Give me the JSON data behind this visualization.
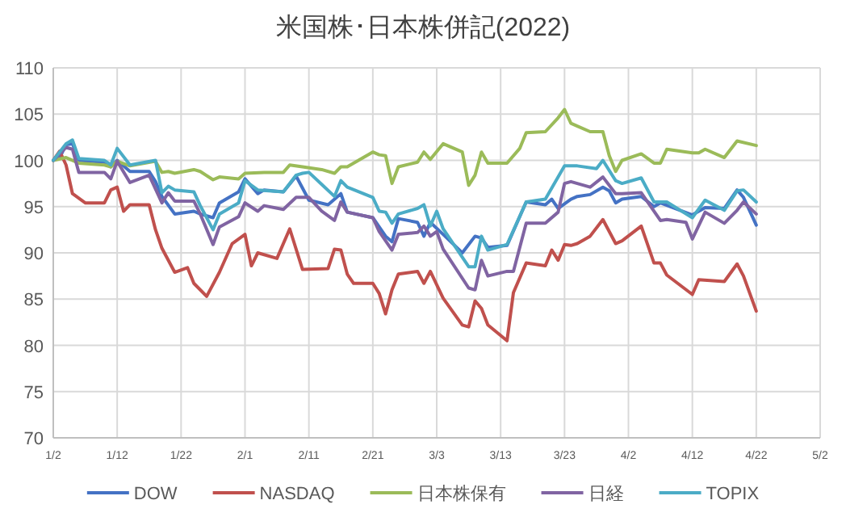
{
  "chart_data": {
    "type": "line",
    "title": "米国株･日本株併記(2022)",
    "grid": true,
    "legend": "bottom",
    "xlim": [
      "--01-02",
      "--05-02"
    ],
    "xticks": [
      {
        "value": "--01-02",
        "label": "1/2"
      },
      {
        "value": "--01-12",
        "label": "1/12"
      },
      {
        "value": "--01-22",
        "label": "1/22"
      },
      {
        "value": "--02-01",
        "label": "2/1"
      },
      {
        "value": "--02-11",
        "label": "2/11"
      },
      {
        "value": "--02-21",
        "label": "2/21"
      },
      {
        "value": "--03-03",
        "label": "3/3"
      },
      {
        "value": "--03-13",
        "label": "3/13"
      },
      {
        "value": "--03-23",
        "label": "3/23"
      },
      {
        "value": "--04-02",
        "label": "4/2"
      },
      {
        "value": "--04-12",
        "label": "4/12"
      },
      {
        "value": "--04-22",
        "label": "4/22"
      },
      {
        "value": "--05-02",
        "label": "5/2"
      }
    ],
    "ylim": [
      70,
      110
    ],
    "yticks": [
      70,
      75,
      80,
      85,
      90,
      95,
      100,
      105,
      110
    ],
    "series": [
      {
        "name": "DOW",
        "color": "#4472c4",
        "x": [
          "--01-02",
          "--01-03",
          "--01-04",
          "--01-05",
          "--01-06",
          "--01-10",
          "--01-11",
          "--01-12",
          "--01-14",
          "--01-17",
          "--01-18",
          "--01-19",
          "--01-21",
          "--01-24",
          "--01-25",
          "--01-27",
          "--01-28",
          "--01-31",
          "--02-01",
          "--02-03",
          "--02-04",
          "--02-07",
          "--02-09",
          "--02-11",
          "--02-14",
          "--02-16",
          "--02-17",
          "--02-21",
          "--02-23",
          "--02-24",
          "--02-25",
          "--02-28",
          "--03-01",
          "--03-02",
          "--03-04",
          "--03-07",
          "--03-09",
          "--03-10",
          "--03-11",
          "--03-14",
          "--03-17",
          "--03-20",
          "--03-21",
          "--03-22",
          "--03-24",
          "--03-25",
          "--03-27",
          "--03-29",
          "--03-30",
          "--03-31",
          "--04-01",
          "--04-04",
          "--04-06",
          "--04-07",
          "--04-12",
          "--04-14",
          "--04-17",
          "--04-19",
          "--04-20",
          "--04-22"
        ],
        "values": [
          100,
          100.3,
          101.7,
          101.8,
          100,
          99.8,
          99.3,
          100,
          98.8,
          98.8,
          97.7,
          96.1,
          94.2,
          94.5,
          94.2,
          93.8,
          95.4,
          96.6,
          98,
          96.4,
          96.8,
          96.6,
          98.3,
          95.7,
          95.2,
          96.4,
          94.4,
          93.8,
          91.8,
          91.2,
          93.7,
          93.3,
          91.8,
          93.3,
          92,
          90,
          91.8,
          91.6,
          90.6,
          90.8,
          95.5,
          95.2,
          95.8,
          94.8,
          95.8,
          96.1,
          96.3,
          97.1,
          96.7,
          95.4,
          95.8,
          96.1,
          95,
          95.4,
          94.1,
          94.9,
          94.8,
          96.8,
          96,
          93
        ]
      },
      {
        "name": "NASDAQ",
        "color": "#c0504d",
        "x": [
          "--01-02",
          "--01-03",
          "--01-04",
          "--01-05",
          "--01-07",
          "--01-10",
          "--01-11",
          "--01-12",
          "--01-13",
          "--01-14",
          "--01-17",
          "--01-18",
          "--01-19",
          "--01-21",
          "--01-23",
          "--01-24",
          "--01-26",
          "--01-28",
          "--01-30",
          "--02-01",
          "--02-02",
          "--02-03",
          "--02-06",
          "--02-08",
          "--02-10",
          "--02-14",
          "--02-15",
          "--02-16",
          "--02-17",
          "--02-18",
          "--02-21",
          "--02-22",
          "--02-23",
          "--02-24",
          "--02-25",
          "--02-28",
          "--03-01",
          "--03-02",
          "--03-04",
          "--03-07",
          "--03-08",
          "--03-09",
          "--03-10",
          "--03-11",
          "--03-14",
          "--03-15",
          "--03-17",
          "--03-20",
          "--03-21",
          "--03-22",
          "--03-23",
          "--03-24",
          "--03-25",
          "--03-27",
          "--03-29",
          "--03-31",
          "--04-01",
          "--04-04",
          "--04-06",
          "--04-07",
          "--04-08",
          "--04-12",
          "--04-13",
          "--04-17",
          "--04-19",
          "--04-20",
          "--04-22"
        ],
        "values": [
          100,
          101,
          99.5,
          96.4,
          95.4,
          95.4,
          96.8,
          97.1,
          94.5,
          95.2,
          95.2,
          92.5,
          90.5,
          87.9,
          88.4,
          86.7,
          85.3,
          87.9,
          91,
          92,
          88.6,
          90,
          89.4,
          92.6,
          88.2,
          88.3,
          90.4,
          90.3,
          87.7,
          86.7,
          86.7,
          85.6,
          83.4,
          86,
          87.7,
          88,
          86.7,
          88,
          85.1,
          82.2,
          82,
          84.8,
          84,
          82.2,
          80.5,
          85.7,
          88.9,
          88.6,
          90.3,
          89.2,
          90.9,
          90.8,
          91,
          91.8,
          93.6,
          91,
          91.3,
          92.9,
          88.9,
          88.9,
          87.6,
          85.5,
          87.1,
          86.9,
          88.8,
          87.5,
          83.7
        ]
      },
      {
        "name": "日本株保有",
        "color": "#9bbb59",
        "x": [
          "--01-02",
          "--01-04",
          "--01-06",
          "--01-10",
          "--01-11",
          "--01-12",
          "--01-14",
          "--01-18",
          "--01-19",
          "--01-20",
          "--01-21",
          "--01-24",
          "--01-25",
          "--01-27",
          "--01-28",
          "--01-31",
          "--02-01",
          "--02-04",
          "--02-07",
          "--02-08",
          "--02-10",
          "--02-13",
          "--02-15",
          "--02-16",
          "--02-17",
          "--02-21",
          "--02-22",
          "--02-23",
          "--02-24",
          "--02-25",
          "--02-28",
          "--03-01",
          "--03-02",
          "--03-04",
          "--03-07",
          "--03-08",
          "--03-09",
          "--03-10",
          "--03-11",
          "--03-14",
          "--03-16",
          "--03-17",
          "--03-20",
          "--03-22",
          "--03-23",
          "--03-24",
          "--03-25",
          "--03-27",
          "--03-29",
          "--03-30",
          "--03-31",
          "--04-01",
          "--04-04",
          "--04-06",
          "--04-07",
          "--04-08",
          "--04-12",
          "--04-13",
          "--04-14",
          "--04-17",
          "--04-19",
          "--04-22"
        ],
        "values": [
          100,
          100.3,
          99.7,
          99.5,
          99.3,
          99.9,
          99.4,
          99.9,
          98.7,
          98.8,
          98.6,
          99,
          98.8,
          97.9,
          98.2,
          98,
          98.6,
          98.7,
          98.7,
          99.5,
          99.3,
          99,
          98.6,
          99.3,
          99.3,
          100.9,
          100.6,
          100.5,
          97.5,
          99.3,
          99.8,
          100.9,
          100.1,
          101.8,
          100.9,
          97.3,
          98.4,
          100.9,
          99.7,
          99.7,
          101.3,
          103,
          103.1,
          104.6,
          105.5,
          104,
          103.7,
          103.1,
          103.1,
          100.5,
          98.8,
          100,
          100.7,
          99.7,
          99.7,
          101.2,
          100.8,
          100.8,
          101.2,
          100.3,
          102.1,
          101.6
        ]
      },
      {
        "name": "日経",
        "color": "#8064a2",
        "x": [
          "--01-02",
          "--01-04",
          "--01-05",
          "--01-06",
          "--01-10",
          "--01-11",
          "--01-12",
          "--01-14",
          "--01-17",
          "--01-19",
          "--01-20",
          "--01-21",
          "--01-24",
          "--01-25",
          "--01-27",
          "--01-28",
          "--01-31",
          "--02-01",
          "--02-03",
          "--02-04",
          "--02-07",
          "--02-09",
          "--02-11",
          "--02-13",
          "--02-15",
          "--02-16",
          "--02-17",
          "--02-21",
          "--02-22",
          "--02-24",
          "--02-25",
          "--02-28",
          "--03-01",
          "--03-02",
          "--03-03",
          "--03-04",
          "--03-08",
          "--03-09",
          "--03-10",
          "--03-11",
          "--03-14",
          "--03-15",
          "--03-17",
          "--03-20",
          "--03-22",
          "--03-23",
          "--03-24",
          "--03-25",
          "--03-27",
          "--03-29",
          "--03-31",
          "--04-01",
          "--04-04",
          "--04-07",
          "--04-08",
          "--04-11",
          "--04-12",
          "--04-14",
          "--04-17",
          "--04-19",
          "--04-20",
          "--04-22"
        ],
        "values": [
          100,
          101.4,
          101.2,
          98.7,
          98.7,
          98,
          99.9,
          97.6,
          98.4,
          95.4,
          96.5,
          95.6,
          95.6,
          94.2,
          90.9,
          92.8,
          93.9,
          95.4,
          94.5,
          95.1,
          94.7,
          96,
          96,
          94.5,
          93.5,
          95.5,
          94.4,
          93.8,
          92.3,
          90.3,
          92,
          92.2,
          92.9,
          91.8,
          92.3,
          90.4,
          86.2,
          86,
          89.2,
          87.5,
          88,
          88,
          93.2,
          93.2,
          94.4,
          97.5,
          97.7,
          97.5,
          97.1,
          98.2,
          96.4,
          96.4,
          96.5,
          93.5,
          93.6,
          93.3,
          91.5,
          94.4,
          93.2,
          94.6,
          95.5,
          94.2
        ]
      },
      {
        "name": "TOPIX",
        "color": "#4bacc6",
        "x": [
          "--01-02",
          "--01-04",
          "--01-05",
          "--01-06",
          "--01-10",
          "--01-11",
          "--01-12",
          "--01-14",
          "--01-18",
          "--01-19",
          "--01-20",
          "--01-21",
          "--01-24",
          "--01-25",
          "--01-27",
          "--01-28",
          "--01-31",
          "--02-01",
          "--02-03",
          "--02-07",
          "--02-09",
          "--02-10",
          "--02-11",
          "--02-13",
          "--02-15",
          "--02-16",
          "--02-17",
          "--02-21",
          "--02-22",
          "--02-23",
          "--02-24",
          "--02-25",
          "--02-28",
          "--03-01",
          "--03-02",
          "--03-03",
          "--03-04",
          "--03-08",
          "--03-09",
          "--03-10",
          "--03-11",
          "--03-14",
          "--03-17",
          "--03-20",
          "--03-23",
          "--03-25",
          "--03-28",
          "--03-29",
          "--03-31",
          "--04-01",
          "--04-04",
          "--04-06",
          "--04-08",
          "--04-12",
          "--04-14",
          "--04-17",
          "--04-19",
          "--04-20",
          "--04-22"
        ],
        "values": [
          100,
          101.8,
          102.2,
          100.2,
          100,
          99.5,
          101.3,
          99.5,
          100,
          96.5,
          97.2,
          96.8,
          96.6,
          95.1,
          92.5,
          94.2,
          95.4,
          97.8,
          96.8,
          96.6,
          98.4,
          98.6,
          98.7,
          97.4,
          96.1,
          97.8,
          97.1,
          96,
          94.5,
          94.4,
          93.2,
          94.2,
          94.8,
          95.2,
          92.9,
          94.5,
          92.6,
          88.5,
          88.5,
          91.8,
          90.3,
          90.9,
          95.5,
          95.8,
          99.4,
          99.4,
          99.1,
          100,
          97.8,
          97.5,
          98.1,
          95.5,
          95.5,
          93.8,
          95.7,
          94.6,
          96.7,
          96.8,
          95.5
        ]
      }
    ]
  }
}
